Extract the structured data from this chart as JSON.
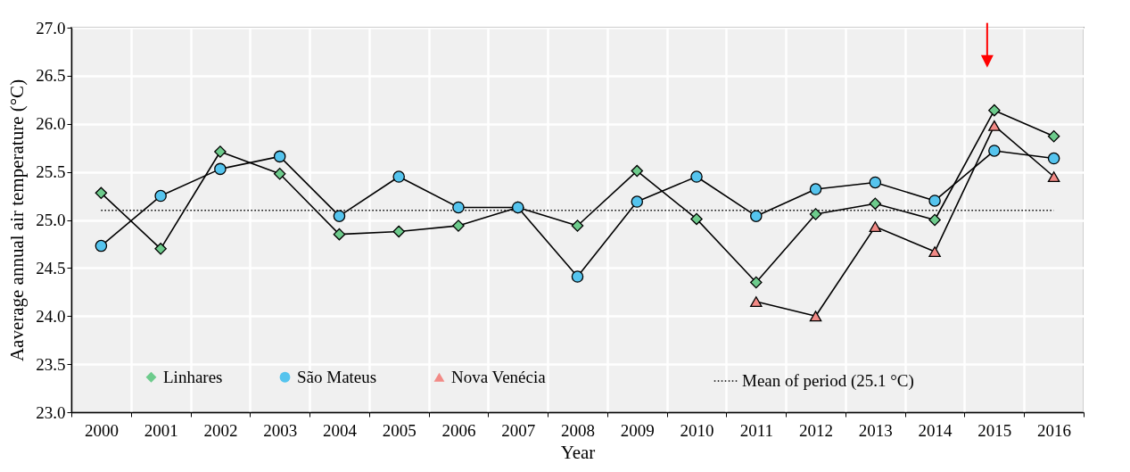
{
  "chart_data": {
    "type": "line",
    "xlabel": "Year",
    "ylabel": "Aaverage annual air temperature  (°C)",
    "categories": [
      "2000",
      "2001",
      "2002",
      "2003",
      "2004",
      "2005",
      "2006",
      "2007",
      "2008",
      "2009",
      "2010",
      "2011",
      "2012",
      "2013",
      "2014",
      "2015",
      "2016"
    ],
    "series": [
      {
        "name": "Linhares",
        "color": "#6dcb8c",
        "marker": "diamond",
        "values": [
          25.28,
          24.7,
          25.71,
          25.48,
          24.85,
          24.88,
          24.94,
          25.13,
          24.94,
          25.51,
          25.01,
          24.35,
          25.06,
          25.17,
          25.0,
          26.14,
          25.87
        ]
      },
      {
        "name": "São Mateus",
        "color": "#55c4ee",
        "marker": "circle",
        "values": [
          24.73,
          25.25,
          25.53,
          25.66,
          25.04,
          25.45,
          25.13,
          25.13,
          24.41,
          25.19,
          25.45,
          25.04,
          25.32,
          25.39,
          25.2,
          25.72,
          25.64
        ]
      },
      {
        "name": "Nova Venécia",
        "color": "#f28a86",
        "marker": "triangle",
        "values": [
          null,
          null,
          null,
          null,
          null,
          null,
          null,
          null,
          null,
          null,
          null,
          24.15,
          24.0,
          24.93,
          24.67,
          25.98,
          25.45
        ]
      }
    ],
    "ref_lines": [
      {
        "axis": "y",
        "value": 25.1,
        "label": "Mean of period (25.1 °C)",
        "line_style": "dotted",
        "color": "#000000"
      }
    ],
    "ylim": [
      23.0,
      27.0
    ],
    "yticks": [
      {
        "value": 23.0,
        "label": "23.0"
      },
      {
        "value": 23.5,
        "label": "23.5"
      },
      {
        "value": 24.0,
        "label": "24.0"
      },
      {
        "value": 24.5,
        "label": "24.5"
      },
      {
        "value": 25.0,
        "label": "25.0"
      },
      {
        "value": 25.5,
        "label": "25.5"
      },
      {
        "value": 26.0,
        "label": "26.0"
      },
      {
        "value": 26.5,
        "label": "26.5"
      },
      {
        "value": 27.0,
        "label": "27.0"
      }
    ],
    "grid": true,
    "legend": "bottom",
    "line_style": "solid"
  }
}
